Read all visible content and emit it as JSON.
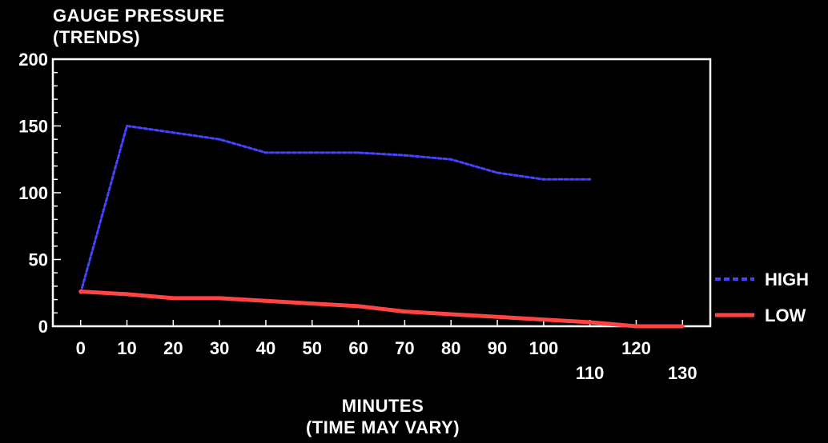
{
  "chart_data": {
    "type": "line",
    "title": "GAUGE PRESSURE",
    "subtitle": "(TRENDS)",
    "xlabel": "MINUTES",
    "xlabel_sub": "(TIME MAY VARY)",
    "ylabel": "",
    "xlim": [
      -6,
      136
    ],
    "ylim": [
      0,
      200
    ],
    "yticks": [
      0,
      50,
      100,
      150,
      200
    ],
    "xticks_top": [
      0,
      10,
      20,
      30,
      40,
      50,
      60,
      70,
      80,
      90,
      100,
      120
    ],
    "xticks_bottom": [
      110,
      130
    ],
    "grid": false,
    "legend_position": "right",
    "series": [
      {
        "name": "HIGH",
        "color": "#4444ff",
        "style": "dashed",
        "x": [
          0,
          10,
          20,
          30,
          40,
          50,
          60,
          70,
          80,
          90,
          100,
          110
        ],
        "y": [
          25,
          150,
          145,
          140,
          130,
          130,
          130,
          128,
          125,
          115,
          110,
          110
        ]
      },
      {
        "name": "LOW",
        "color": "#ff4444",
        "style": "solid",
        "x": [
          0,
          10,
          20,
          30,
          40,
          50,
          60,
          70,
          80,
          90,
          100,
          110,
          120,
          130
        ],
        "y": [
          26,
          24,
          21,
          21,
          19,
          17,
          15,
          11,
          9,
          7,
          5,
          3,
          0,
          0
        ]
      }
    ]
  }
}
